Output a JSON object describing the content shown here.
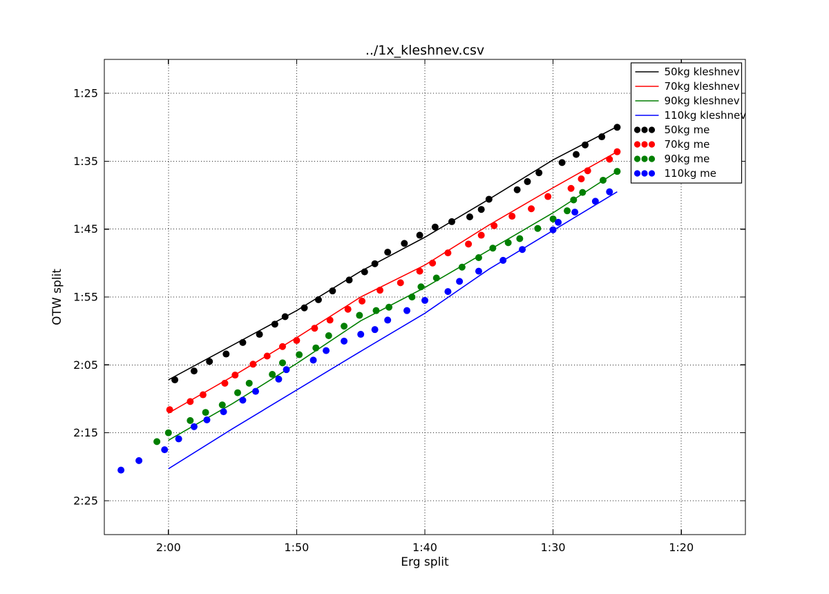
{
  "figure": {
    "background": "#ffffff",
    "frame_color": "#000000",
    "grid_color": "#222222"
  },
  "chart_data": {
    "type": "line",
    "title": "../1x_kleshnev.csv",
    "xlabel": "Erg split",
    "ylabel": "OTW split",
    "grid": true,
    "legend_position": "upper right",
    "x_axis": {
      "range": [
        125,
        75
      ],
      "inverted": true,
      "ticks": [
        {
          "v": 120,
          "label": "2:00"
        },
        {
          "v": 110,
          "label": "1:50"
        },
        {
          "v": 100,
          "label": "1:40"
        },
        {
          "v": 90,
          "label": "1:30"
        },
        {
          "v": 80,
          "label": "1:20"
        }
      ]
    },
    "y_axis": {
      "range": [
        80,
        150
      ],
      "inverted": true,
      "ticks": [
        {
          "v": 85,
          "label": "1:25"
        },
        {
          "v": 95,
          "label": "1:35"
        },
        {
          "v": 105,
          "label": "1:45"
        },
        {
          "v": 115,
          "label": "1:55"
        },
        {
          "v": 125,
          "label": "2:05"
        },
        {
          "v": 135,
          "label": "2:15"
        },
        {
          "v": 145,
          "label": "2:25"
        }
      ]
    },
    "series": [
      {
        "name": "50kg kleshnev",
        "color": "#000000",
        "style": "line",
        "points": [
          [
            120,
            127.2
          ],
          [
            115,
            122.1
          ],
          [
            110,
            117.0
          ],
          [
            105,
            111.2
          ],
          [
            100,
            106.2
          ],
          [
            95,
            100.6
          ],
          [
            90,
            94.8
          ],
          [
            85,
            89.9
          ]
        ]
      },
      {
        "name": "70kg kleshnev",
        "color": "#ff0000",
        "style": "line",
        "points": [
          [
            120,
            132.1
          ],
          [
            115,
            126.7
          ],
          [
            110,
            121.0
          ],
          [
            105,
            115.0
          ],
          [
            100,
            110.3
          ],
          [
            95,
            104.4
          ],
          [
            90,
            98.9
          ],
          [
            85,
            93.6
          ]
        ]
      },
      {
        "name": "90kg kleshnev",
        "color": "#007f00",
        "style": "line",
        "points": [
          [
            120,
            136.1
          ],
          [
            115,
            130.7
          ],
          [
            110,
            124.8
          ],
          [
            105,
            118.5
          ],
          [
            100,
            113.6
          ],
          [
            95,
            108.1
          ],
          [
            90,
            102.6
          ],
          [
            85,
            96.5
          ]
        ]
      },
      {
        "name": "110kg kleshnev",
        "color": "#0000ff",
        "style": "line",
        "points": [
          [
            120,
            140.3
          ],
          [
            115,
            134.4
          ],
          [
            110,
            128.7
          ],
          [
            105,
            123.0
          ],
          [
            100,
            117.4
          ],
          [
            95,
            110.9
          ],
          [
            90,
            105.2
          ],
          [
            85,
            99.5
          ]
        ]
      },
      {
        "name": "50kg me",
        "color": "#000000",
        "style": "dots",
        "points": [
          [
            119.5,
            127.2
          ],
          [
            118.0,
            125.9
          ],
          [
            116.8,
            124.5
          ],
          [
            115.5,
            123.4
          ],
          [
            114.2,
            121.7
          ],
          [
            112.9,
            120.5
          ],
          [
            111.7,
            119.0
          ],
          [
            110.9,
            117.9
          ],
          [
            109.4,
            116.6
          ],
          [
            108.3,
            115.4
          ],
          [
            107.2,
            114.1
          ],
          [
            105.9,
            112.5
          ],
          [
            104.7,
            111.3
          ],
          [
            103.9,
            110.1
          ],
          [
            102.9,
            108.4
          ],
          [
            101.6,
            107.1
          ],
          [
            100.4,
            105.9
          ],
          [
            99.2,
            104.7
          ],
          [
            97.9,
            103.9
          ],
          [
            96.5,
            103.2
          ],
          [
            95.6,
            102.1
          ],
          [
            95.0,
            100.6
          ],
          [
            92.8,
            99.2
          ],
          [
            92.0,
            98.0
          ],
          [
            91.1,
            96.7
          ],
          [
            89.3,
            95.2
          ],
          [
            88.2,
            94.0
          ],
          [
            87.5,
            92.6
          ],
          [
            86.2,
            91.4
          ],
          [
            85.0,
            90.0
          ]
        ]
      },
      {
        "name": "70kg me",
        "color": "#ff0000",
        "style": "dots",
        "points": [
          [
            119.9,
            131.6
          ],
          [
            118.3,
            130.4
          ],
          [
            117.3,
            129.4
          ],
          [
            115.6,
            127.7
          ],
          [
            114.8,
            126.5
          ],
          [
            113.4,
            124.9
          ],
          [
            112.3,
            123.7
          ],
          [
            111.1,
            122.3
          ],
          [
            110.0,
            121.4
          ],
          [
            108.6,
            119.6
          ],
          [
            107.4,
            118.4
          ],
          [
            106.0,
            116.8
          ],
          [
            104.9,
            115.6
          ],
          [
            103.5,
            114.0
          ],
          [
            101.9,
            112.9
          ],
          [
            100.4,
            111.2
          ],
          [
            99.4,
            110.0
          ],
          [
            98.2,
            108.5
          ],
          [
            96.6,
            107.2
          ],
          [
            95.6,
            105.9
          ],
          [
            94.6,
            104.5
          ],
          [
            93.2,
            103.1
          ],
          [
            91.7,
            102.0
          ],
          [
            90.4,
            100.2
          ],
          [
            88.6,
            99.0
          ],
          [
            87.8,
            97.6
          ],
          [
            87.3,
            96.4
          ],
          [
            85.6,
            94.7
          ],
          [
            85.0,
            93.6
          ]
        ]
      },
      {
        "name": "90kg me",
        "color": "#007f00",
        "style": "dots",
        "points": [
          [
            120.9,
            136.3
          ],
          [
            120.0,
            135.0
          ],
          [
            118.3,
            133.2
          ],
          [
            117.1,
            132.0
          ],
          [
            115.8,
            130.9
          ],
          [
            114.6,
            129.1
          ],
          [
            113.7,
            127.7
          ],
          [
            111.9,
            126.4
          ],
          [
            111.1,
            124.7
          ],
          [
            109.8,
            123.5
          ],
          [
            108.5,
            122.5
          ],
          [
            107.5,
            120.7
          ],
          [
            106.3,
            119.3
          ],
          [
            105.1,
            117.7
          ],
          [
            103.8,
            117.0
          ],
          [
            102.8,
            116.5
          ],
          [
            101.0,
            115.0
          ],
          [
            100.3,
            113.5
          ],
          [
            99.1,
            112.2
          ],
          [
            97.1,
            110.6
          ],
          [
            95.8,
            109.2
          ],
          [
            94.7,
            107.8
          ],
          [
            93.5,
            107.0
          ],
          [
            92.6,
            106.4
          ],
          [
            91.2,
            104.9
          ],
          [
            90.0,
            103.5
          ],
          [
            88.9,
            102.3
          ],
          [
            88.4,
            100.7
          ],
          [
            87.7,
            99.6
          ],
          [
            86.1,
            97.8
          ],
          [
            85.0,
            96.5
          ]
        ]
      },
      {
        "name": "110kg me",
        "color": "#0000ff",
        "style": "dots",
        "points": [
          [
            123.7,
            140.5
          ],
          [
            122.3,
            139.1
          ],
          [
            120.3,
            137.5
          ],
          [
            119.2,
            135.9
          ],
          [
            118.0,
            134.1
          ],
          [
            117.0,
            133.1
          ],
          [
            115.7,
            131.9
          ],
          [
            114.2,
            130.2
          ],
          [
            113.2,
            128.9
          ],
          [
            111.4,
            127.1
          ],
          [
            110.8,
            125.7
          ],
          [
            108.7,
            124.3
          ],
          [
            107.7,
            122.9
          ],
          [
            106.3,
            121.5
          ],
          [
            105.0,
            120.5
          ],
          [
            103.9,
            119.8
          ],
          [
            102.9,
            118.4
          ],
          [
            101.4,
            117.0
          ],
          [
            100.0,
            115.5
          ],
          [
            98.2,
            114.2
          ],
          [
            97.3,
            112.7
          ],
          [
            95.8,
            111.2
          ],
          [
            93.9,
            109.6
          ],
          [
            92.4,
            108.0
          ],
          [
            90.0,
            105.1
          ],
          [
            89.6,
            104.0
          ],
          [
            88.3,
            102.5
          ],
          [
            86.7,
            100.9
          ],
          [
            85.6,
            99.5
          ]
        ]
      }
    ]
  }
}
